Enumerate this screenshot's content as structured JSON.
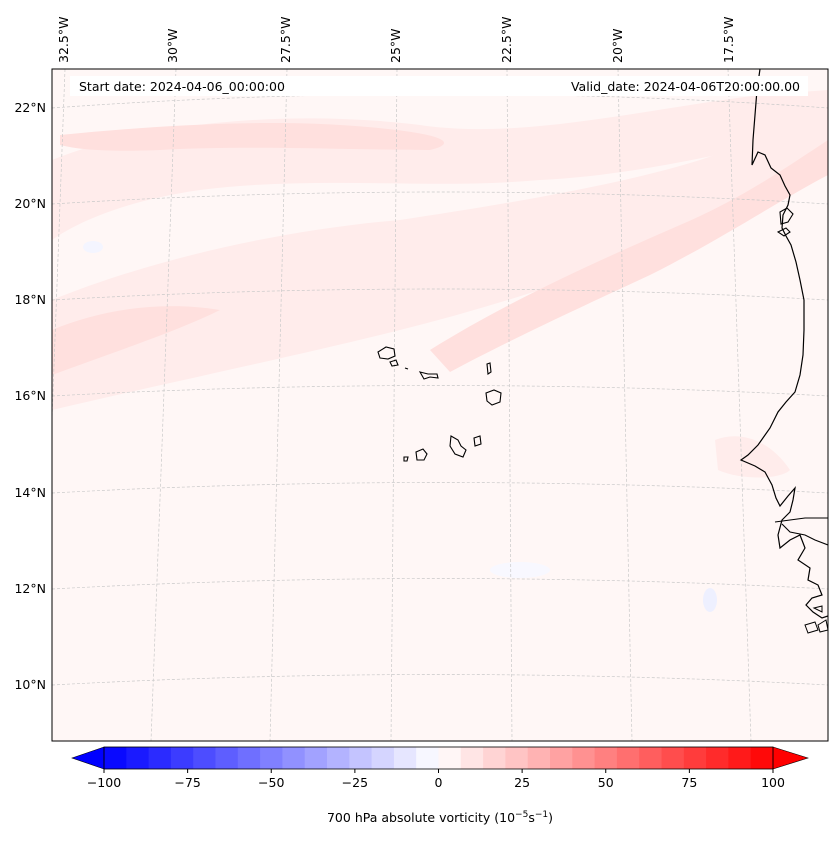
{
  "header": {
    "start_date": "Start date: 2024-04-06_00:00:00",
    "valid_date": "Valid_date: 2024-04-06T20:00:00.00"
  },
  "longitude_labels": [
    "32.5°W",
    "30°W",
    "27.5°W",
    "25°W",
    "22.5°W",
    "20°W",
    "17.5°W"
  ],
  "latitude_labels": [
    "22°N",
    "20°N",
    "18°N",
    "16°N",
    "14°N",
    "12°N",
    "10°N"
  ],
  "colorbar": {
    "label_main": "700 hPa absolute vorticity (10",
    "label_exp1": "−5",
    "label_mid": "s",
    "label_exp2": "−1",
    "label_end": ")",
    "ticks": [
      "−100",
      "−75",
      "−50",
      "−25",
      "0",
      "25",
      "50",
      "75",
      "100"
    ],
    "min": -100,
    "max": 100,
    "levels": 30,
    "color_min": "#0000ff",
    "color_mid": "#ffffff",
    "color_max": "#ff0000"
  },
  "field": {
    "background_color": "#fff7f6",
    "band_color": "#ffe0de",
    "band_light_color": "#ffeceb",
    "land_outline_color": "#000000"
  }
}
